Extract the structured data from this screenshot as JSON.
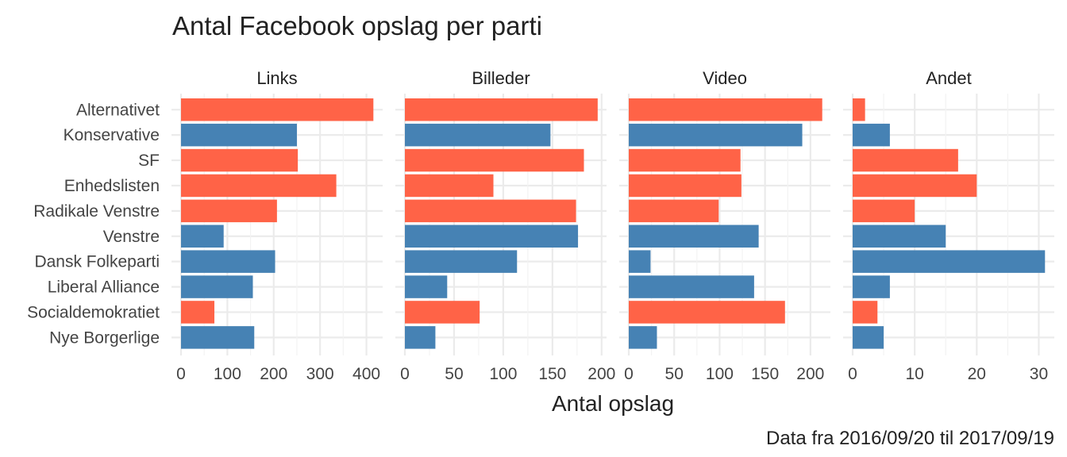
{
  "chart_data": {
    "type": "bar",
    "orientation": "horizontal",
    "title": "Antal Facebook opslag per parti",
    "xlabel": "Antal opslag",
    "ylabel": "",
    "caption": "Data fra 2016/09/20 til 2017/09/19",
    "legend": "none",
    "grid": true,
    "colors": {
      "red": "#ff6347",
      "blue": "#4682b4"
    },
    "categories": [
      "Alternativet",
      "Konservative",
      "SF",
      "Enhedslisten",
      "Radikale Venstre",
      "Venstre",
      "Dansk Folkeparti",
      "Liberal Alliance",
      "Socialdemokratiet",
      "Nye Borgerlige"
    ],
    "category_colors": [
      "red",
      "blue",
      "red",
      "red",
      "red",
      "blue",
      "blue",
      "blue",
      "red",
      "blue"
    ],
    "panels": [
      {
        "name": "Links",
        "xlim": [
          0,
          435
        ],
        "ticks": [
          0,
          100,
          200,
          300,
          400
        ],
        "minor_ticks": [
          50,
          150,
          250,
          350
        ],
        "values": [
          415,
          250,
          252,
          335,
          207,
          92,
          203,
          155,
          72,
          158
        ]
      },
      {
        "name": "Billeder",
        "xlim": [
          0,
          205
        ],
        "ticks": [
          0,
          50,
          100,
          150,
          200
        ],
        "minor_ticks": [
          25,
          75,
          125,
          175
        ],
        "values": [
          196,
          148,
          182,
          90,
          174,
          176,
          114,
          43,
          76,
          31
        ]
      },
      {
        "name": "Video",
        "xlim": [
          0,
          222
        ],
        "ticks": [
          0,
          50,
          100,
          150,
          200
        ],
        "minor_ticks": [
          25,
          75,
          125,
          175
        ],
        "values": [
          213,
          191,
          123,
          124,
          99,
          143,
          24,
          138,
          172,
          31
        ]
      },
      {
        "name": "Andet",
        "xlim": [
          0,
          32.5
        ],
        "ticks": [
          0,
          10,
          20,
          30
        ],
        "minor_ticks": [
          5,
          15,
          25
        ],
        "values": [
          2,
          6,
          17,
          20,
          10,
          15,
          31,
          6,
          4,
          5
        ]
      }
    ]
  }
}
